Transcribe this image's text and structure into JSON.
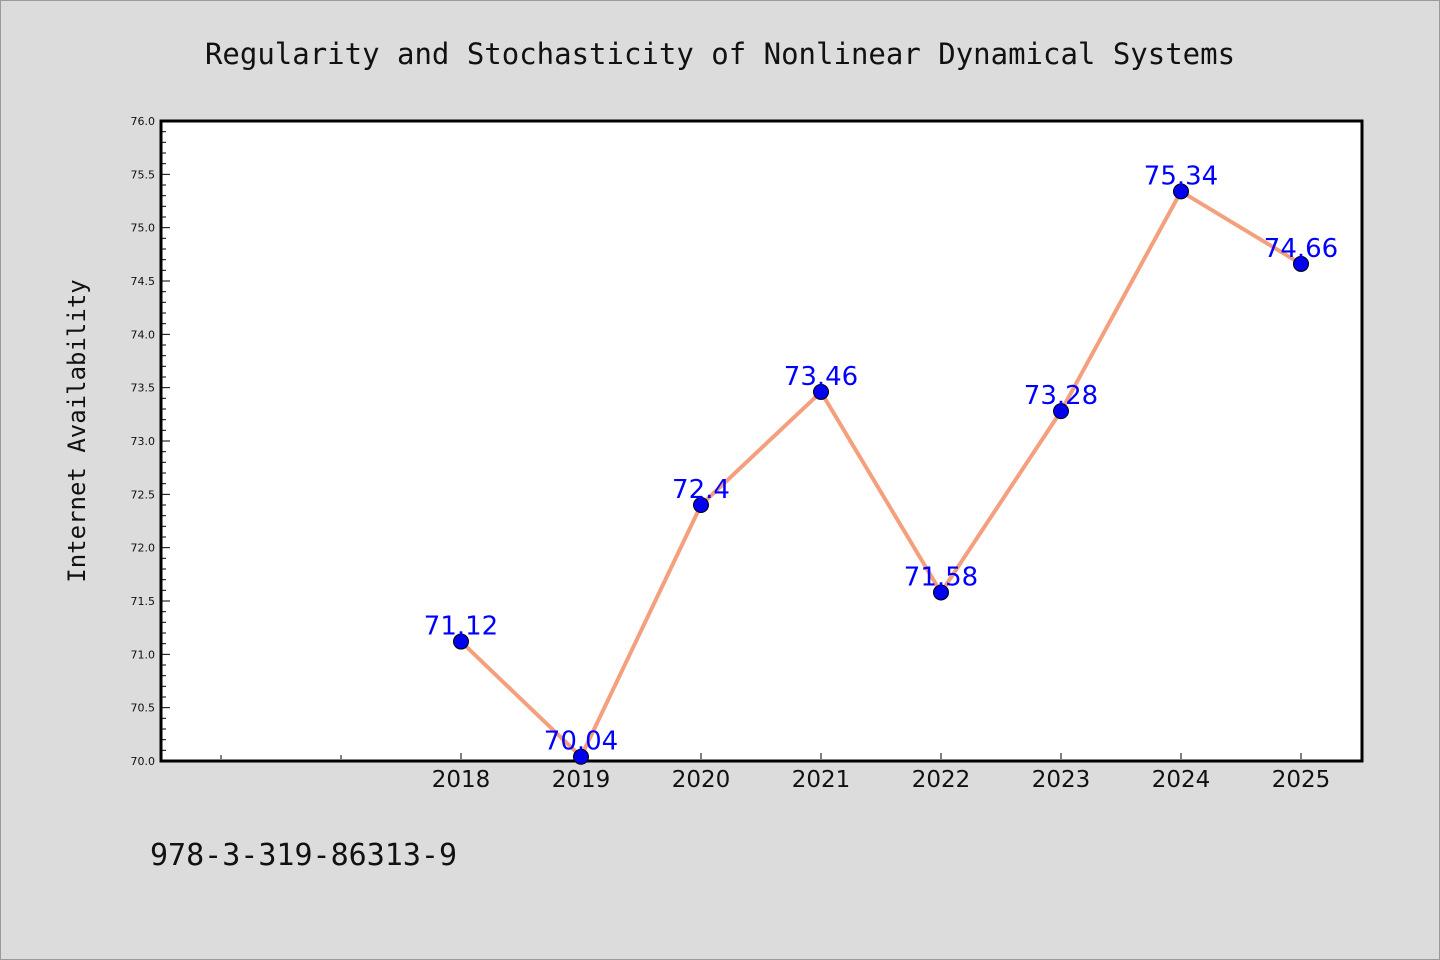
{
  "figure": {
    "title": "Regularity and Stochasticity of Nonlinear Dynamical Systems",
    "footer": "978-3-319-86313-9"
  },
  "colors": {
    "background": "#dcdcdc",
    "plot_area": "#ffffff",
    "line": "#f4a07f",
    "marker": "#0000ee",
    "data_label": "#0000ff"
  },
  "chart_data": {
    "type": "line",
    "title": "Regularity and Stochasticity of Nonlinear Dynamical Systems",
    "xlabel": "",
    "ylabel": "Internet Availability",
    "categories": [
      "2018",
      "2019",
      "2020",
      "2021",
      "2022",
      "2023",
      "2024",
      "2025"
    ],
    "series": [
      {
        "values": [
          71.12,
          70.04,
          72.4,
          73.46,
          71.58,
          73.28,
          75.34,
          74.66
        ],
        "labels": [
          "71.12",
          "70.04",
          "72.4",
          "73.46",
          "71.58",
          "73.28",
          "75.34",
          "74.66"
        ]
      }
    ],
    "ylim": [
      70.0,
      76.0
    ],
    "yticks": [
      "70.0",
      "70.5",
      "71.0",
      "71.5",
      "72.0",
      "72.5",
      "73.0",
      "73.5",
      "74.0",
      "74.5",
      "75.0",
      "75.5",
      "76.0"
    ],
    "grid": false,
    "legend": "none",
    "markers": true,
    "data_labels": true
  }
}
